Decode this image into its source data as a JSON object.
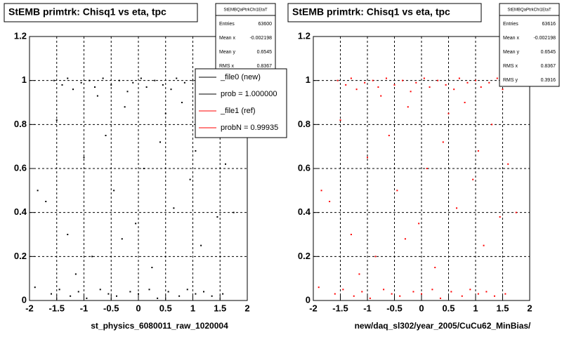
{
  "chart_data": [
    {
      "type": "scatter",
      "title": "StEMB primtrk: Chisq1 vs eta, tpc",
      "xlabel": "st_physics_6080011_raw_1020004",
      "color": "#000000",
      "xlim": [
        -2,
        2
      ],
      "ylim": [
        0,
        1.2
      ],
      "xticks": [
        -2,
        -1.5,
        -1,
        -0.5,
        0,
        0.5,
        1,
        1.5,
        2
      ],
      "yticks": [
        0,
        0.2,
        0.4,
        0.6,
        0.8,
        1,
        1.2
      ],
      "grid": true,
      "stats_title": "StEMBQaPtrkChi1EtaT",
      "stats": [
        {
          "label": "Entries",
          "value": 63600
        },
        {
          "label": "Mean x",
          "value": -0.002198
        },
        {
          "label": "Mean y",
          "value": 0.6545
        },
        {
          "label": "RMS x",
          "value": 0.8367
        }
      ],
      "legend": [
        {
          "label": "_file0 (new)",
          "color": "#000000"
        },
        {
          "label": "prob = 1.000000",
          "color": "#000000"
        },
        {
          "label": "_file1 (ref)",
          "color": "#ff0000"
        },
        {
          "label": "probN = 0.99935",
          "color": "#ff0000"
        }
      ],
      "x": [
        -1.55,
        -1.4,
        -1.3,
        -1.2,
        -1.05,
        -0.9,
        -0.8,
        -0.65,
        -0.5,
        -0.35,
        -0.2,
        -0.1,
        0.05,
        0.15,
        0.3,
        0.45,
        0.6,
        0.7,
        0.85,
        1.0,
        1.1,
        1.25,
        1.4,
        1.5,
        -0.75,
        -1.6,
        -1.45,
        -1.25,
        -1.1,
        -0.95,
        -0.7,
        -0.55,
        -0.4,
        -0.15,
        0.0,
        0.2,
        0.35,
        0.55,
        0.75,
        0.9,
        1.05,
        1.2,
        1.35,
        1.55,
        -1.9,
        -1.7,
        -1.5,
        -1.3,
        -1.0,
        -0.85,
        -0.6,
        -0.45,
        -0.25,
        -0.05,
        0.1,
        0.25,
        0.4,
        0.65,
        0.8,
        0.95,
        1.15,
        1.3,
        1.45,
        1.6,
        1.75,
        -1.85,
        -0.3,
        0.5,
        1.05,
        -1.15
      ],
      "y": [
        1.0,
        0.98,
        1.01,
        0.96,
        0.99,
        1.0,
        0.97,
        1.01,
        0.98,
        1.0,
        0.95,
        0.99,
        1.01,
        0.97,
        1.0,
        0.98,
        0.96,
        1.01,
        0.99,
        1.0,
        0.97,
        0.99,
        1.01,
        0.96,
        0.93,
        0.03,
        0.05,
        0.02,
        0.04,
        0.01,
        0.05,
        0.03,
        0.02,
        0.04,
        0.03,
        0.05,
        0.01,
        0.04,
        0.02,
        0.05,
        0.03,
        0.04,
        0.02,
        0.03,
        0.06,
        0.45,
        0.82,
        0.3,
        0.65,
        0.2,
        0.75,
        0.5,
        0.88,
        0.35,
        0.6,
        0.15,
        0.72,
        0.42,
        0.9,
        0.55,
        0.25,
        0.8,
        0.38,
        0.62,
        0.4,
        0.5,
        0.28,
        0.85,
        0.68,
        0.12
      ]
    },
    {
      "type": "scatter",
      "title": "StEMB primtrk: Chisq1 vs eta, tpc",
      "xlabel": "new/daq_sl302/year_2005/CuCu62_MinBias/",
      "color": "#ff0000",
      "xlim": [
        -2,
        2
      ],
      "ylim": [
        0,
        1.2
      ],
      "xticks": [
        -2,
        -1.5,
        -1,
        -0.5,
        0,
        0.5,
        1,
        1.5,
        2
      ],
      "yticks": [
        0,
        0.2,
        0.4,
        0.6,
        0.8,
        1,
        1.2
      ],
      "grid": true,
      "stats_title": "StEMBQaPtrkChi1EtaT",
      "stats": [
        {
          "label": "Entries",
          "value": 63616
        },
        {
          "label": "Mean x",
          "value": -0.002198
        },
        {
          "label": "Mean y",
          "value": 0.6545
        },
        {
          "label": "RMS x",
          "value": 0.8367
        },
        {
          "label": "RMS y",
          "value": 0.3916
        }
      ],
      "x": [
        -1.55,
        -1.4,
        -1.3,
        -1.2,
        -1.05,
        -0.9,
        -0.8,
        -0.65,
        -0.5,
        -0.35,
        -0.2,
        -0.1,
        0.05,
        0.15,
        0.3,
        0.45,
        0.6,
        0.7,
        0.85,
        1.0,
        1.1,
        1.25,
        1.4,
        1.5,
        -0.75,
        -1.6,
        -1.45,
        -1.25,
        -1.1,
        -0.95,
        -0.7,
        -0.55,
        -0.4,
        -0.15,
        0.0,
        0.2,
        0.35,
        0.55,
        0.75,
        0.9,
        1.05,
        1.2,
        1.35,
        1.55,
        -1.9,
        -1.7,
        -1.5,
        -1.3,
        -1.0,
        -0.85,
        -0.6,
        -0.45,
        -0.25,
        -0.05,
        0.1,
        0.25,
        0.4,
        0.65,
        0.8,
        0.95,
        1.15,
        1.3,
        1.45,
        1.6,
        1.75,
        -1.85,
        -0.3,
        0.5,
        1.05,
        -1.15
      ],
      "y": [
        1.0,
        0.98,
        1.01,
        0.96,
        0.99,
        1.0,
        0.97,
        1.01,
        0.98,
        1.0,
        0.95,
        0.99,
        1.01,
        0.97,
        1.0,
        0.98,
        0.96,
        1.01,
        0.99,
        1.0,
        0.97,
        0.99,
        1.01,
        0.96,
        0.93,
        0.03,
        0.05,
        0.02,
        0.04,
        0.01,
        0.05,
        0.03,
        0.02,
        0.04,
        0.03,
        0.05,
        0.01,
        0.04,
        0.02,
        0.05,
        0.03,
        0.04,
        0.02,
        0.03,
        0.06,
        0.45,
        0.82,
        0.3,
        0.65,
        0.2,
        0.75,
        0.5,
        0.88,
        0.35,
        0.6,
        0.15,
        0.72,
        0.42,
        0.9,
        0.55,
        0.25,
        0.8,
        0.38,
        0.62,
        0.4,
        0.5,
        0.28,
        0.85,
        0.68,
        0.12
      ]
    }
  ]
}
